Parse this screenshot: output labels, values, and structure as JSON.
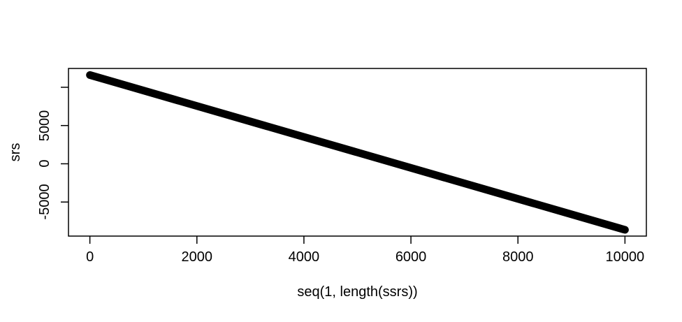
{
  "window": {
    "background": "#ffffff",
    "foreground": "#000000"
  },
  "chart_data": {
    "type": "scatter",
    "title": "",
    "xlabel": "seq(1, length(ssrs))",
    "ylabel": "srs",
    "x_ticks": [
      {
        "value": 0,
        "label": "0"
      },
      {
        "value": 2000,
        "label": "2000"
      },
      {
        "value": 4000,
        "label": "4000"
      },
      {
        "value": 6000,
        "label": "6000"
      },
      {
        "value": 8000,
        "label": "8000"
      },
      {
        "value": 10000,
        "label": "10000"
      }
    ],
    "y_ticks": [
      {
        "value": 10000,
        "label": ""
      },
      {
        "value": 5000,
        "label": "5000"
      },
      {
        "value": 0,
        "label": "0"
      },
      {
        "value": -5000,
        "label": "-5000"
      }
    ],
    "xlim": [
      -400,
      10400
    ],
    "ylim": [
      -9450,
      12460
    ],
    "grid": false,
    "legend": false,
    "point_color": "#000000",
    "background": "#ffffff",
    "series": [
      {
        "name": "srs",
        "style": "dense overplotted black points forming a thick straight descending band",
        "band_thickness_px": 11,
        "trend": {
          "x": [
            1,
            10000
          ],
          "y": [
            11600,
            -8630
          ]
        },
        "sample_points": [
          [
            1,
            11600
          ],
          [
            2000,
            7556
          ],
          [
            4000,
            3509
          ],
          [
            6000,
            -538
          ],
          [
            8000,
            -4585
          ],
          [
            10000,
            -8630
          ]
        ]
      }
    ]
  }
}
